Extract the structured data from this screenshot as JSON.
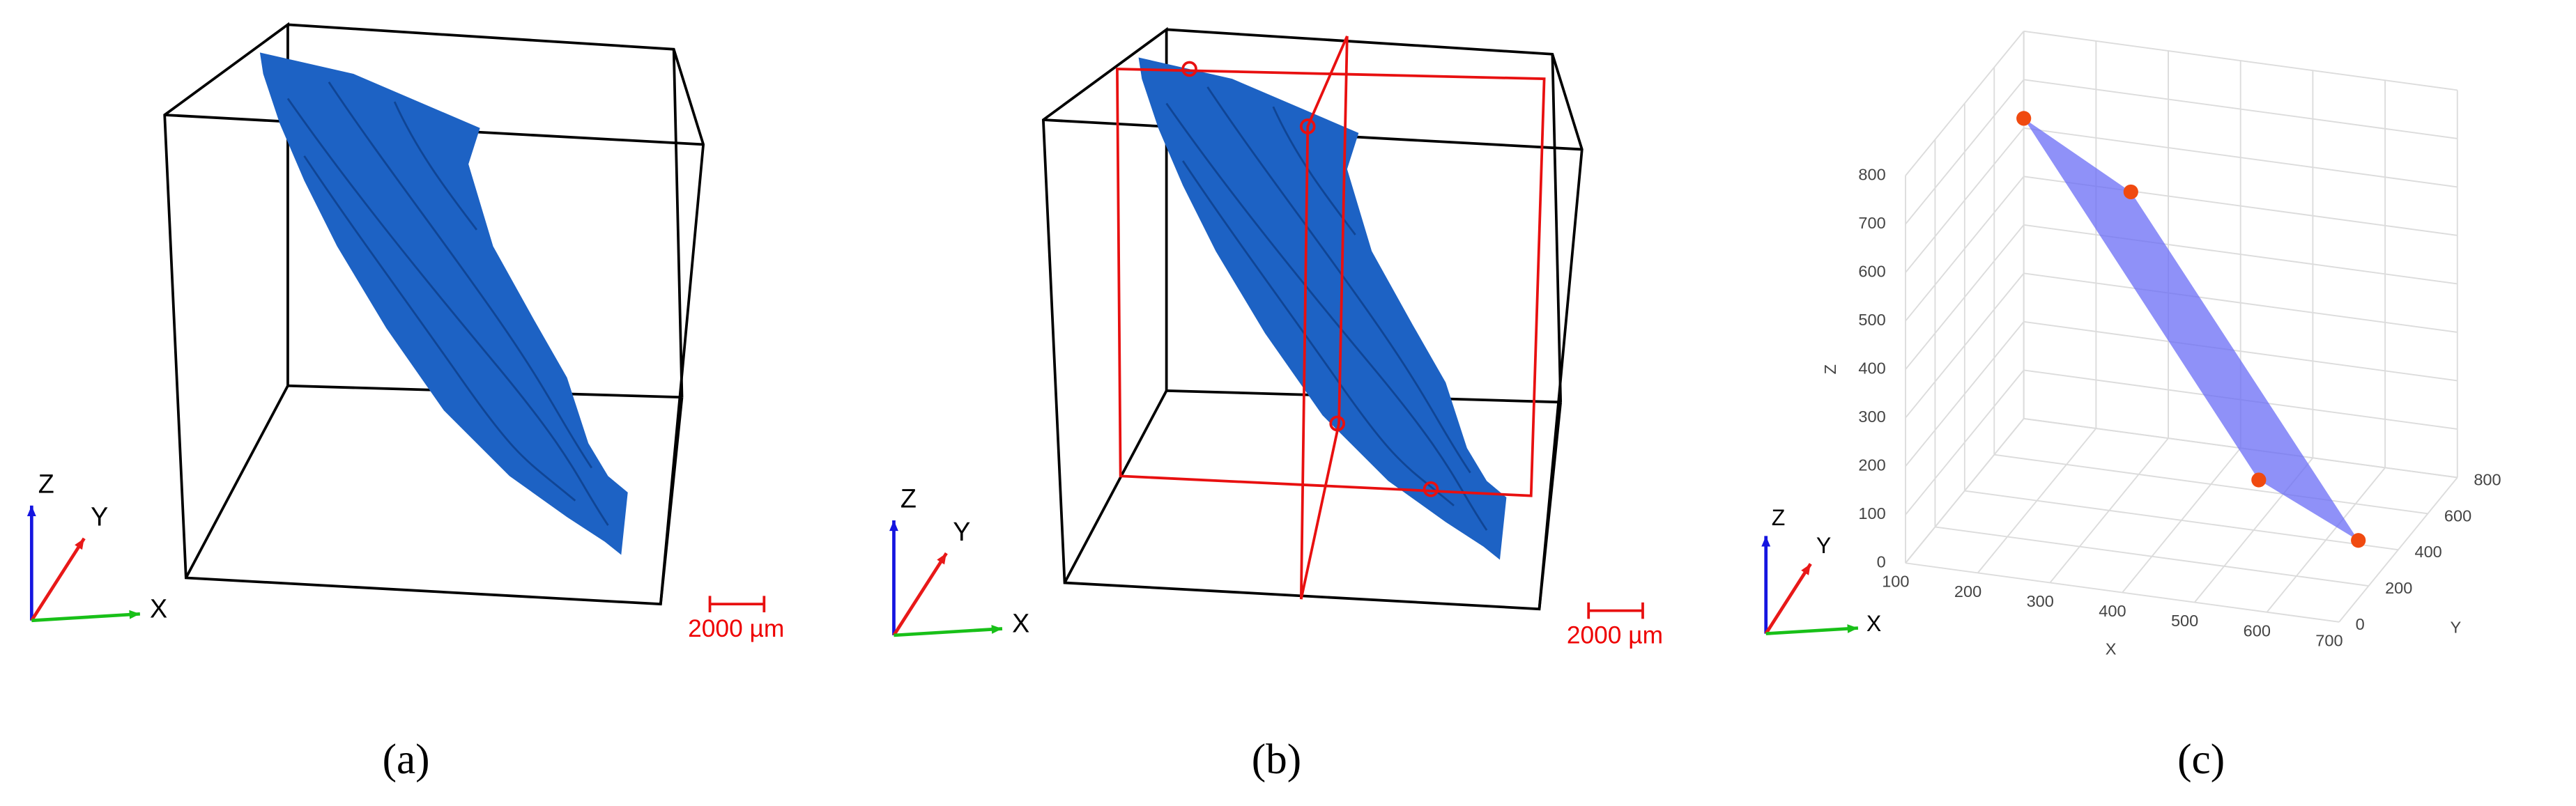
{
  "panels": [
    {
      "label": "(a)",
      "axes": {
        "z": "Z",
        "y": "Y",
        "x": "X"
      },
      "scale_bar": "2000 µm"
    },
    {
      "label": "(b)",
      "axes": {
        "z": "Z",
        "y": "Y",
        "x": "X"
      },
      "scale_bar": "2000 µm"
    },
    {
      "label": "(c)",
      "axes": {
        "z": "Z",
        "y": "Y",
        "x": "X"
      }
    }
  ],
  "chart_data": {
    "type": "scatter3d",
    "x_label": "X",
    "y_label": "Y",
    "z_label": "Z",
    "xlim": [
      100,
      700
    ],
    "ylim": [
      0,
      800
    ],
    "zlim": [
      0,
      800
    ],
    "xticks": [
      100,
      200,
      300,
      400,
      500,
      600,
      700
    ],
    "yticks": [
      0,
      200,
      400,
      600,
      800
    ],
    "zticks": [
      0,
      100,
      200,
      300,
      400,
      500,
      600,
      700,
      800
    ],
    "grid": true,
    "point_color": "#f04a10",
    "plane_color": "#6a6cf6",
    "x": [
      100,
      330,
      700,
      507
    ],
    "y": [
      800,
      400,
      130,
      400
    ],
    "z": [
      620,
      664,
      120,
      105
    ]
  }
}
